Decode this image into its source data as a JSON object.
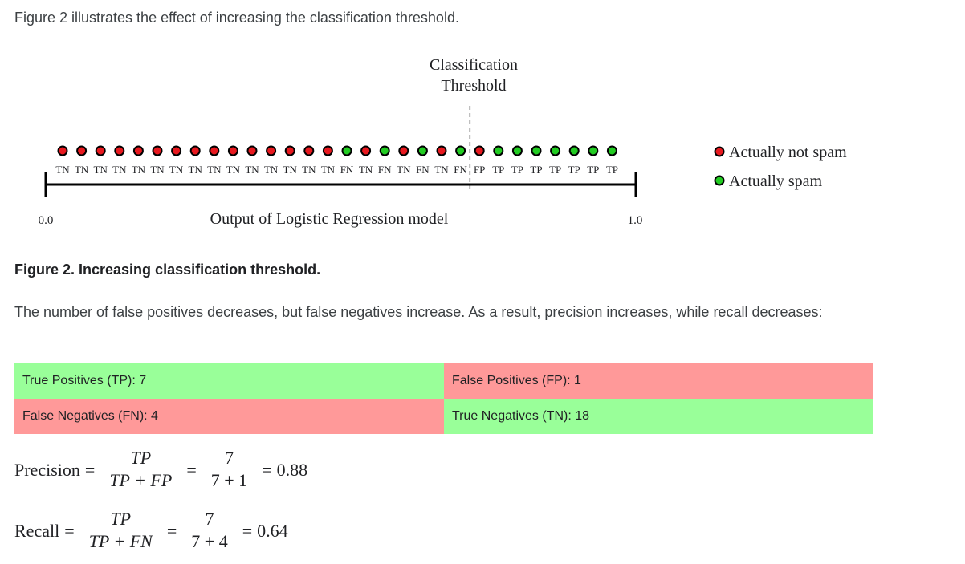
{
  "intro": "Figure 2 illustrates the effect of increasing the classification threshold.",
  "figure": {
    "threshold_label_line1": "Classification",
    "threshold_label_line2": "Threshold",
    "points": [
      {
        "cls": "not_spam",
        "label": "TN"
      },
      {
        "cls": "not_spam",
        "label": "TN"
      },
      {
        "cls": "not_spam",
        "label": "TN"
      },
      {
        "cls": "not_spam",
        "label": "TN"
      },
      {
        "cls": "not_spam",
        "label": "TN"
      },
      {
        "cls": "not_spam",
        "label": "TN"
      },
      {
        "cls": "not_spam",
        "label": "TN"
      },
      {
        "cls": "not_spam",
        "label": "TN"
      },
      {
        "cls": "not_spam",
        "label": "TN"
      },
      {
        "cls": "not_spam",
        "label": "TN"
      },
      {
        "cls": "not_spam",
        "label": "TN"
      },
      {
        "cls": "not_spam",
        "label": "TN"
      },
      {
        "cls": "not_spam",
        "label": "TN"
      },
      {
        "cls": "not_spam",
        "label": "TN"
      },
      {
        "cls": "not_spam",
        "label": "TN"
      },
      {
        "cls": "spam",
        "label": "FN"
      },
      {
        "cls": "not_spam",
        "label": "TN"
      },
      {
        "cls": "spam",
        "label": "FN"
      },
      {
        "cls": "not_spam",
        "label": "TN"
      },
      {
        "cls": "spam",
        "label": "FN"
      },
      {
        "cls": "not_spam",
        "label": "TN"
      },
      {
        "cls": "spam",
        "label": "FN"
      },
      {
        "cls": "not_spam",
        "label": "FP"
      },
      {
        "cls": "spam",
        "label": "TP"
      },
      {
        "cls": "spam",
        "label": "TP"
      },
      {
        "cls": "spam",
        "label": "TP"
      },
      {
        "cls": "spam",
        "label": "TP"
      },
      {
        "cls": "spam",
        "label": "TP"
      },
      {
        "cls": "spam",
        "label": "TP"
      },
      {
        "cls": "spam",
        "label": "TP"
      }
    ],
    "threshold_after_index": 21,
    "axis_min_label": "0.0",
    "axis_max_label": "1.0",
    "axis_title": "Output of Logistic Regression model",
    "legend": [
      {
        "label": "Actually not spam",
        "color": "#e8191f"
      },
      {
        "label": "Actually spam",
        "color": "#22cc22"
      }
    ],
    "colors": {
      "not_spam": "#e8191f",
      "spam": "#22cc22"
    }
  },
  "caption": "Figure 2. Increasing classification threshold.",
  "paragraph": "The number of false positives decreases, but false negatives increase. As a result, precision increases, while recall decreases:",
  "matrix": {
    "tp": "True Positives (TP): 7",
    "fp": "False Positives (FP): 1",
    "fn": "False Negatives (FN): 4",
    "tn": "True Negatives (TN): 18",
    "good_color": "#99ff99",
    "bad_color": "#ff9999"
  },
  "precision": {
    "label": "Precision",
    "sym_num": "TP",
    "sym_den": "TP + FP",
    "val_num": "7",
    "val_den": "7 + 1",
    "result": "0.88"
  },
  "recall": {
    "label": "Recall",
    "sym_num": "TP",
    "sym_den": "TP + FN",
    "val_num": "7",
    "val_den": "7 + 4",
    "result": "0.64"
  }
}
